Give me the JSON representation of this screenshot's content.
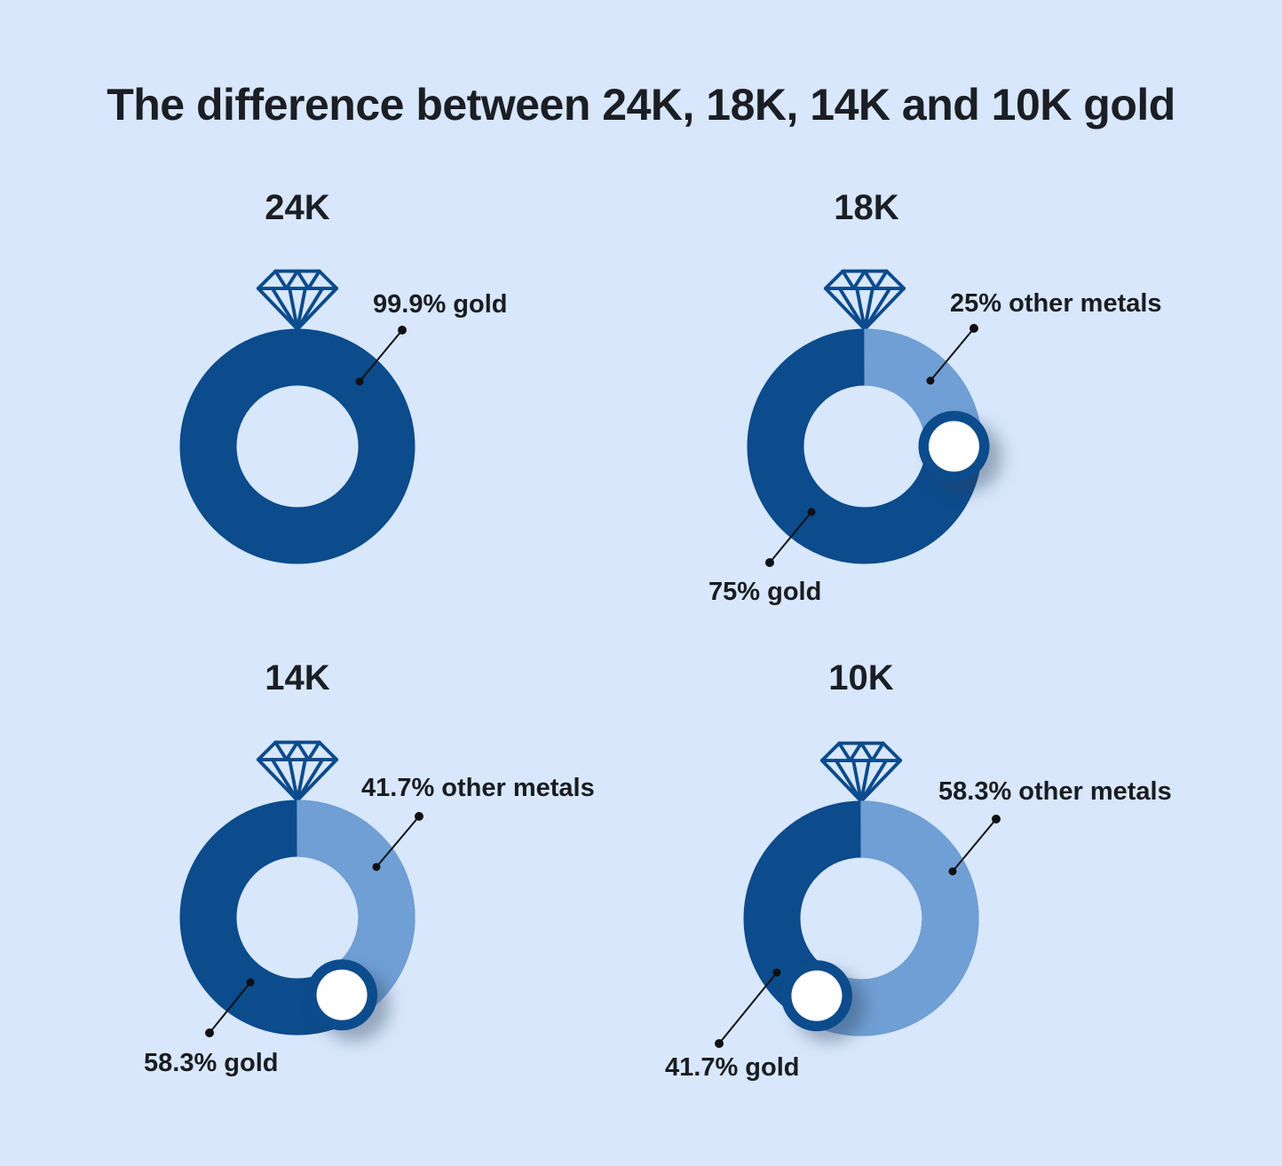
{
  "title": "The difference between 24K, 18K, 14K and 10K gold",
  "colors": {
    "background": "#d8e7fb",
    "gold_segment": "#0c4b8c",
    "other_segment": "#6f9fd4",
    "marker_fill": "#ffffff",
    "text": "#1b1e24",
    "callout": "#101114"
  },
  "chart_data": {
    "type": "pie",
    "subtype": "donut-rings-styled-as-jewelry",
    "legend_position": "callout-labels",
    "rings": [
      {
        "karat": "24K",
        "gold_pct": 99.9,
        "other_pct": 0.1,
        "gold_label": "99.9% gold",
        "other_label": null,
        "marker": false
      },
      {
        "karat": "18K",
        "gold_pct": 75,
        "other_pct": 25,
        "gold_label": "75% gold",
        "other_label": "25% other metals",
        "marker": true
      },
      {
        "karat": "14K",
        "gold_pct": 58.3,
        "other_pct": 41.7,
        "gold_label": "58.3% gold",
        "other_label": "41.7% other metals",
        "marker": true
      },
      {
        "karat": "10K",
        "gold_pct": 41.7,
        "other_pct": 58.3,
        "gold_label": "41.7% gold",
        "other_label": "58.3% other metals",
        "marker": true
      }
    ]
  }
}
